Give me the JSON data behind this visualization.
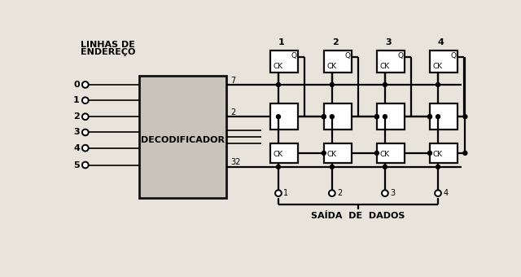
{
  "bg_color": "#e8e4dc",
  "line_color": "#111111",
  "box_fill": "#c8c4bc",
  "decoder_label": "DECODIFICADOR",
  "address_label_line1": "LINHAS DE",
  "address_label_line2": "ENDEREÇO",
  "address_lines": [
    "0",
    "1",
    "2",
    "3",
    "4",
    "5"
  ],
  "output_label": "SAÍDA  DE  DADOS",
  "col_labels": [
    "1",
    "2",
    "3",
    "4"
  ],
  "decoder_out_labels": [
    "7",
    "2",
    "32"
  ],
  "output_nodes": [
    "1",
    "2",
    "3",
    "4"
  ]
}
